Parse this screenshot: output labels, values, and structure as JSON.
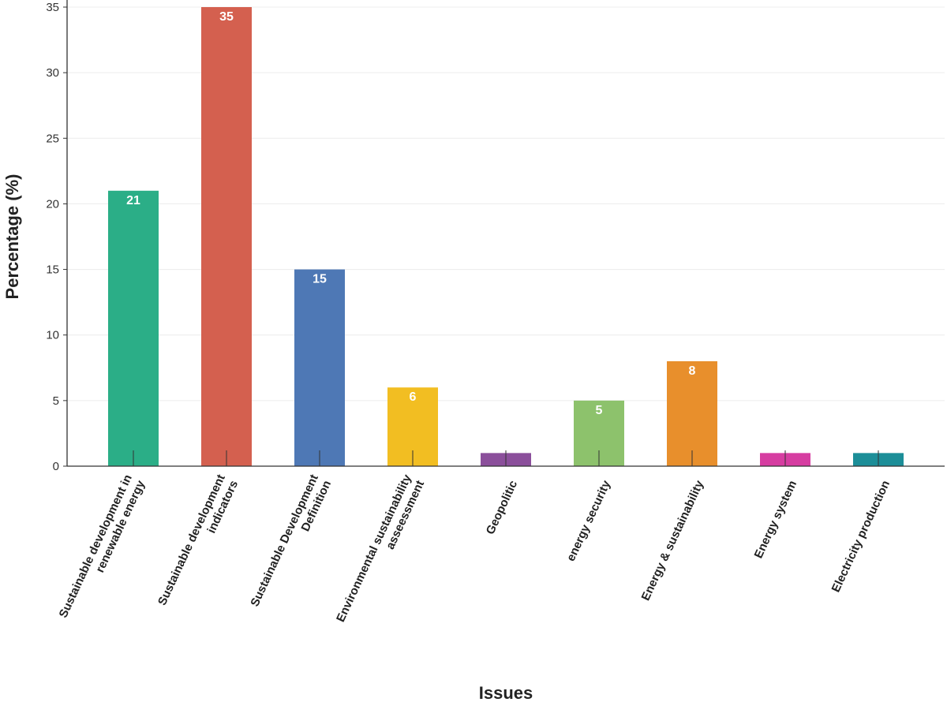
{
  "chart_data": {
    "type": "bar",
    "xlabel": "Issues",
    "ylabel": "Percentage (%)",
    "ylim": [
      0,
      35
    ],
    "yticks": [
      0,
      5,
      10,
      15,
      20,
      25,
      30,
      35
    ],
    "grid": true,
    "categories": [
      [
        "Sustainable development in",
        "renewable energy"
      ],
      [
        "Sustainable development",
        "indicators"
      ],
      [
        "Sustainable Development",
        "Definition"
      ],
      [
        "Environmental sustainability",
        "asseessment"
      ],
      [
        "Geopolitic"
      ],
      [
        "energy security"
      ],
      [
        "Energy & sustainability"
      ],
      [
        "Energy system"
      ],
      [
        "Electricity production"
      ]
    ],
    "values": [
      21,
      35,
      15,
      6,
      1,
      5,
      8,
      1,
      1
    ],
    "data_labels": [
      "21",
      "35",
      "15",
      "6",
      "",
      "5",
      "8",
      "",
      ""
    ],
    "colors": [
      "#2bae87",
      "#d4604f",
      "#4e78b5",
      "#f2be22",
      "#8b4f9b",
      "#8dc26c",
      "#e88f2c",
      "#d63da1",
      "#1c8e98"
    ]
  }
}
